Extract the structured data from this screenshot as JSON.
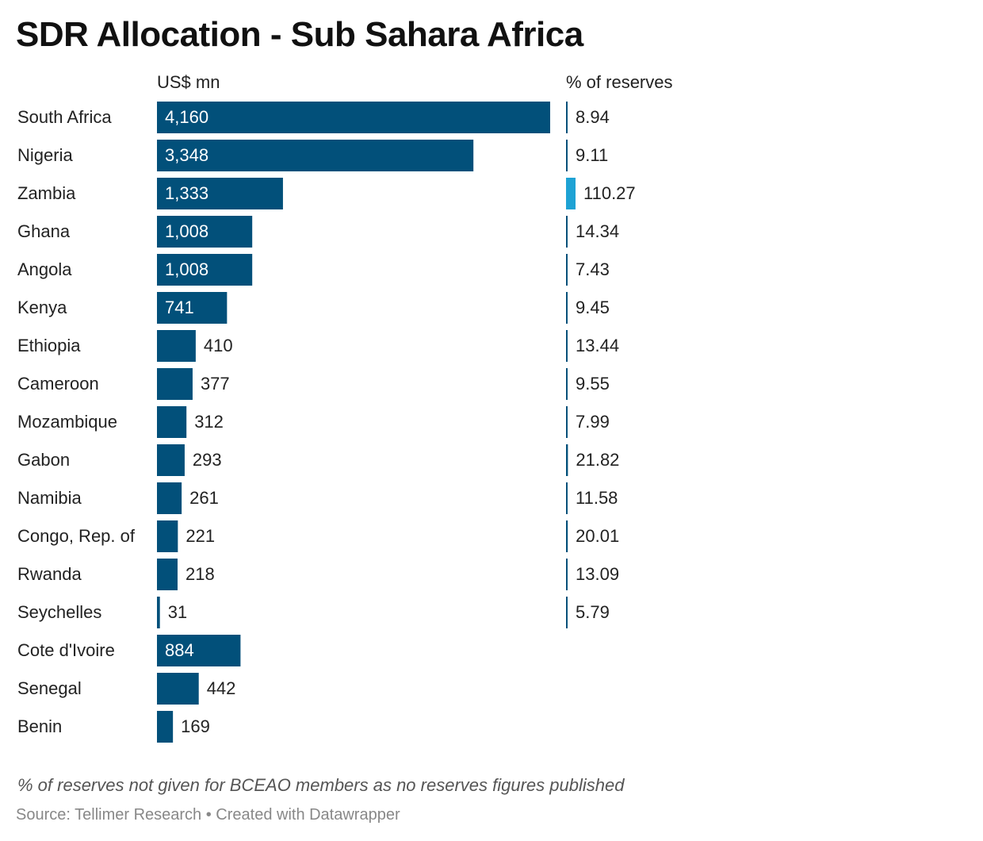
{
  "title": "SDR Allocation - Sub Sahara Africa",
  "columns": {
    "values": "US$ mn",
    "reserves": "% of reserves"
  },
  "note": "% of reserves not given for BCEAO members as no reserves figures published",
  "source": "Source: Tellimer Research • Created with Datawrapper",
  "colors": {
    "bar": "#02507a",
    "reserve_bar": "#1ea2d4",
    "label_inside": "#ffffff",
    "label_outside": "#222222"
  },
  "chart_data": {
    "type": "bar",
    "orientation": "horizontal",
    "categories": [
      "South Africa",
      "Nigeria",
      "Zambia",
      "Ghana",
      "Angola",
      "Kenya",
      "Ethiopia",
      "Cameroon",
      "Mozambique",
      "Gabon",
      "Namibia",
      "Congo, Rep. of",
      "Rwanda",
      "Seychelles",
      "Cote d'Ivoire",
      "Senegal",
      "Benin"
    ],
    "series": [
      {
        "name": "US$ mn",
        "values": [
          4160,
          3348,
          1333,
          1008,
          1008,
          741,
          410,
          377,
          312,
          293,
          261,
          221,
          218,
          31,
          884,
          442,
          169
        ],
        "labels": [
          "4,160",
          "3,348",
          "1,333",
          "1,008",
          "1,008",
          "741",
          "410",
          "377",
          "312",
          "293",
          "261",
          "221",
          "218",
          "31",
          "884",
          "442",
          "169"
        ]
      },
      {
        "name": "% of reserves",
        "values": [
          8.94,
          9.11,
          110.27,
          14.34,
          7.43,
          9.45,
          13.44,
          9.55,
          7.99,
          21.82,
          11.58,
          20.01,
          13.09,
          5.79,
          null,
          null,
          null
        ],
        "labels": [
          "8.94",
          "9.11",
          "110.27",
          "14.34",
          "7.43",
          "9.45",
          "13.44",
          "9.55",
          "7.99",
          "21.82",
          "11.58",
          "20.01",
          "13.09",
          "5.79",
          "",
          "",
          ""
        ]
      }
    ]
  }
}
